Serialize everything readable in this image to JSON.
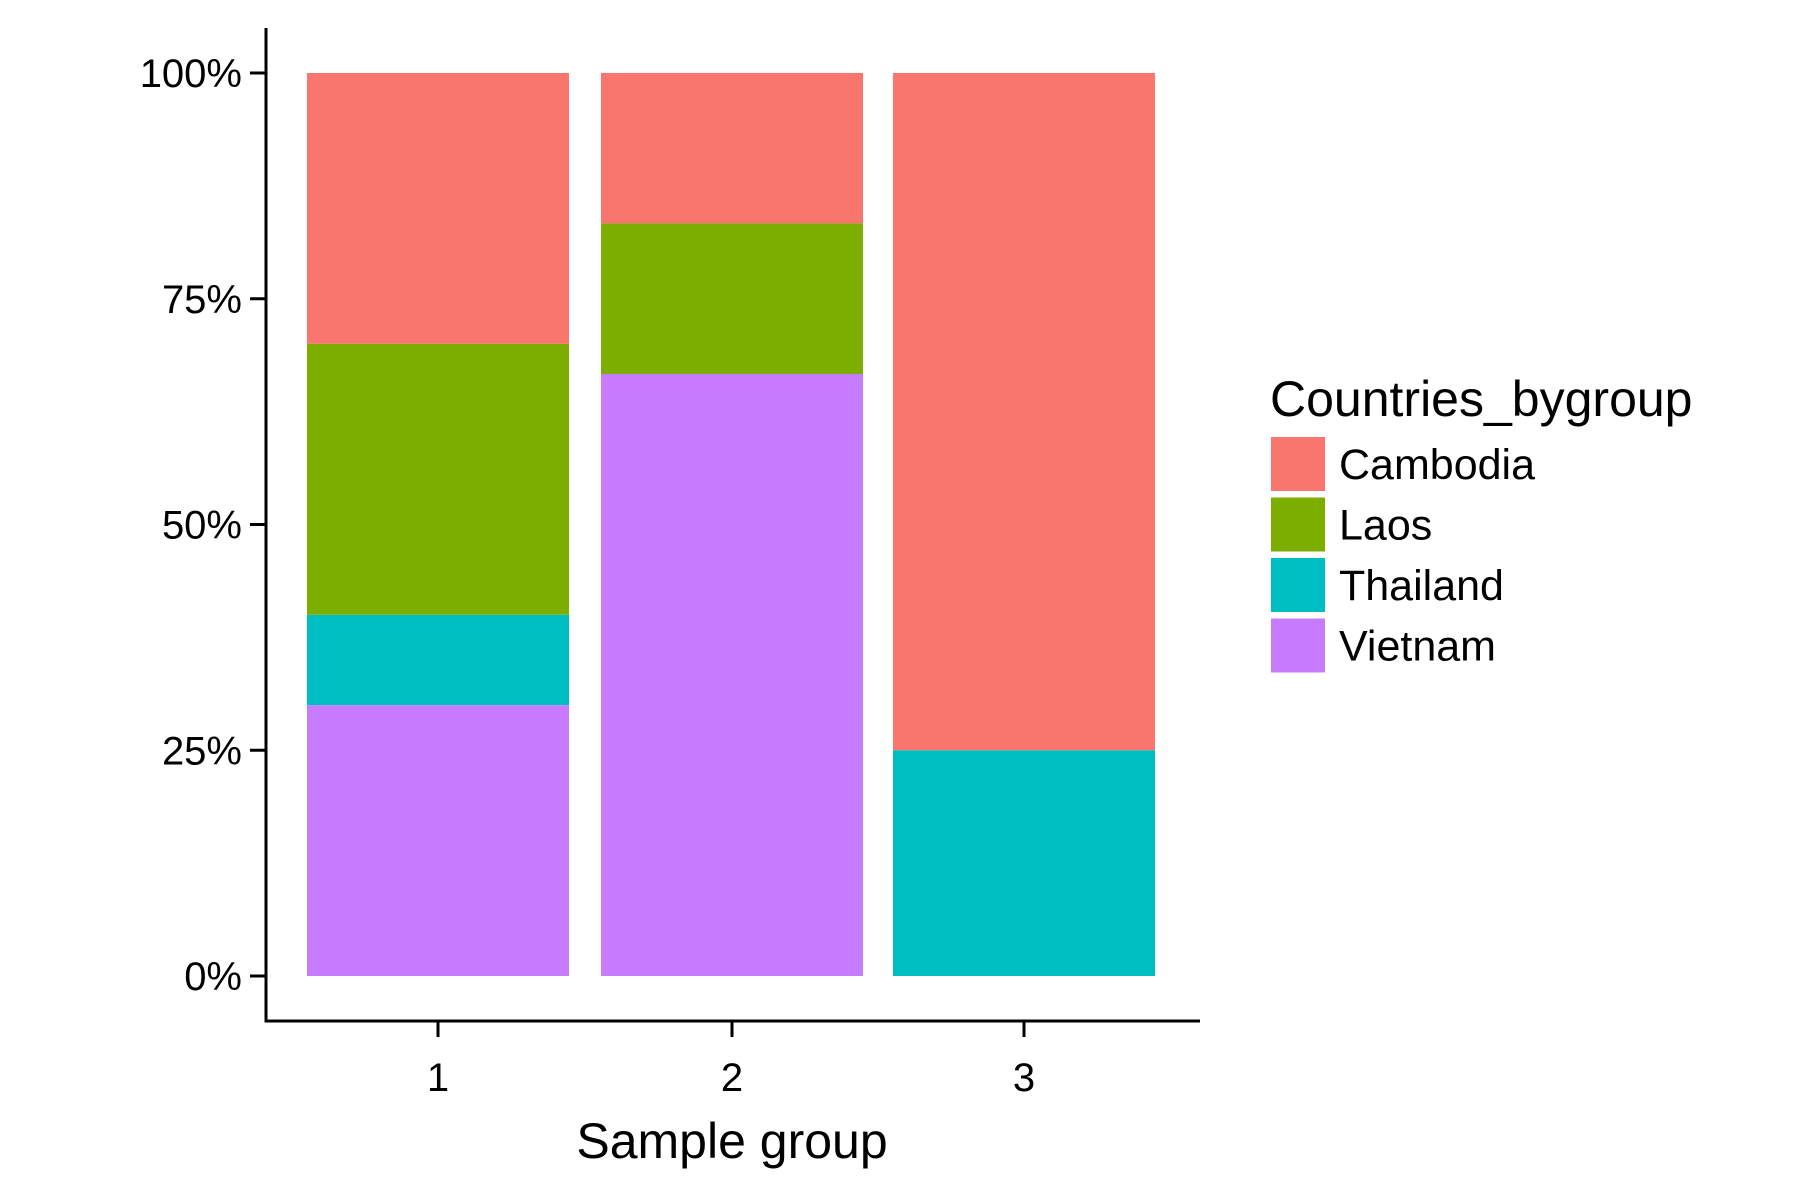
{
  "chart_data": {
    "type": "bar",
    "stacked": true,
    "percent": true,
    "categories": [
      "1",
      "2",
      "3"
    ],
    "series": [
      {
        "name": "Cambodia",
        "color": "#F8766D",
        "values": [
          0.3,
          0.1667,
          0.75
        ]
      },
      {
        "name": "Laos",
        "color": "#7CAE00",
        "values": [
          0.3,
          0.1667,
          0.0
        ]
      },
      {
        "name": "Thailand",
        "color": "#00BFC4",
        "values": [
          0.1,
          0.0,
          0.25
        ]
      },
      {
        "name": "Vietnam",
        "color": "#C77CFF",
        "values": [
          0.3,
          0.6667,
          0.0
        ]
      }
    ],
    "stack_order_bottom_to_top": [
      "Vietnam",
      "Thailand",
      "Laos",
      "Cambodia"
    ],
    "xlabel": "Sample group",
    "ylabel": "",
    "ylim": [
      0,
      1
    ],
    "yticks": [
      0,
      0.25,
      0.5,
      0.75,
      1
    ],
    "ytick_labels": [
      "0%",
      "25%",
      "50%",
      "75%",
      "100%"
    ],
    "xtick_labels": [
      "1",
      "2",
      "3"
    ],
    "grid": false,
    "legend": {
      "title": "Countries_bygroup",
      "placement": "right",
      "entries": [
        "Cambodia",
        "Laos",
        "Thailand",
        "Vietnam"
      ]
    }
  }
}
